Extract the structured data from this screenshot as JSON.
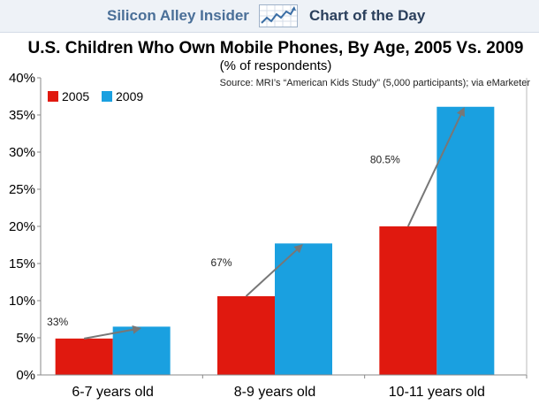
{
  "header": {
    "brand_left": "Silicon Alley Insider",
    "brand_right": "Chart of the Day",
    "logo_icon": "trend-chart-icon"
  },
  "chart_data": {
    "type": "bar",
    "title": "U.S. Children Who Own Mobile Phones, By Age, 2005 Vs. 2009",
    "subtitle": "(% of respondents)",
    "source": "Source: MRI’s “American Kids Study” (5,000 participants); via eMarketer",
    "xlabel": "",
    "ylabel": "",
    "ylim": [
      0,
      40
    ],
    "yticks": [
      0,
      5,
      10,
      15,
      20,
      25,
      30,
      35,
      40
    ],
    "ytick_labels": [
      "0%",
      "5%",
      "10%",
      "15%",
      "20%",
      "25%",
      "30%",
      "35%",
      "40%"
    ],
    "categories": [
      "6-7 years old",
      "8-9 years old",
      "10-11 years old"
    ],
    "series": [
      {
        "name": "2005",
        "color": "#e0190f",
        "values": [
          4.9,
          10.6,
          20.0
        ]
      },
      {
        "name": "2009",
        "color": "#1aa0e0",
        "values": [
          6.5,
          17.7,
          36.1
        ]
      }
    ],
    "annotations": [
      "33%",
      "67%",
      "80.5%"
    ],
    "legend_position": "top-left",
    "grid": false
  }
}
